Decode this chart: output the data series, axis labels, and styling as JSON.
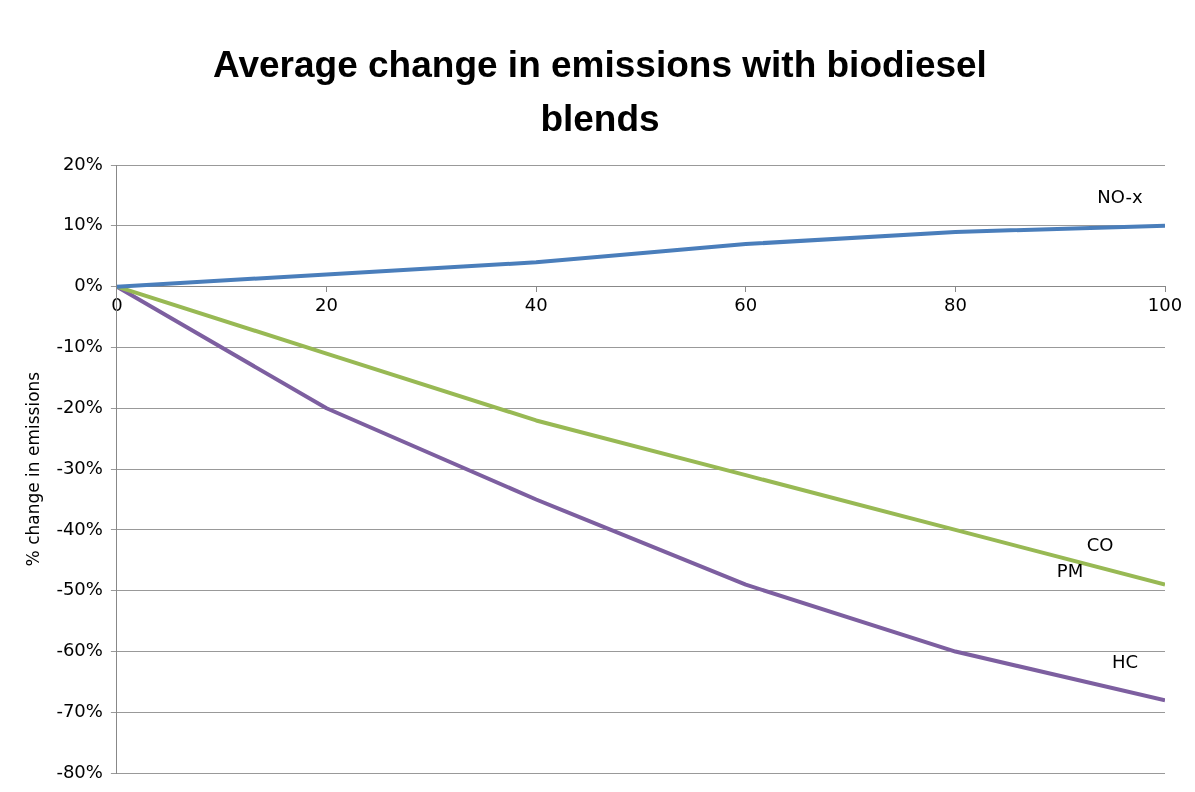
{
  "chart_data": {
    "type": "line",
    "title": "Average change in emissions with biodiesel blends",
    "ylabel": "% change in emissions",
    "x": [
      0,
      20,
      40,
      60,
      80,
      100
    ],
    "series": [
      {
        "name": "NO-x",
        "color": "#4a7ebb",
        "values": [
          0,
          2,
          4,
          7,
          9,
          10
        ]
      },
      {
        "name": "PM",
        "color": "#98b954",
        "values": [
          0,
          -11,
          -22,
          -31,
          -40,
          -49
        ]
      },
      {
        "name": "HC",
        "color": "#7d5fa0",
        "values": [
          0,
          -20,
          -35,
          -49,
          -60,
          -68
        ]
      }
    ],
    "annotations": [
      "CO"
    ],
    "xlim": [
      0,
      100
    ],
    "xticks": [
      0,
      20,
      40,
      60,
      80,
      100
    ],
    "ylim": [
      -80,
      20
    ],
    "yticks": [
      {
        "value": -80,
        "label": "-80%"
      },
      {
        "value": -70,
        "label": "-70%"
      },
      {
        "value": -60,
        "label": "-60%"
      },
      {
        "value": -50,
        "label": "-50%"
      },
      {
        "value": -40,
        "label": "-40%"
      },
      {
        "value": -30,
        "label": "-30%"
      },
      {
        "value": -20,
        "label": "-20%"
      },
      {
        "value": -10,
        "label": "-10%"
      },
      {
        "value": 0,
        "label": "0%"
      },
      {
        "value": 10,
        "label": "10%"
      },
      {
        "value": 20,
        "label": "20%"
      }
    ],
    "grid": "y",
    "legend": false,
    "marker": "none",
    "line_style": "solid"
  }
}
